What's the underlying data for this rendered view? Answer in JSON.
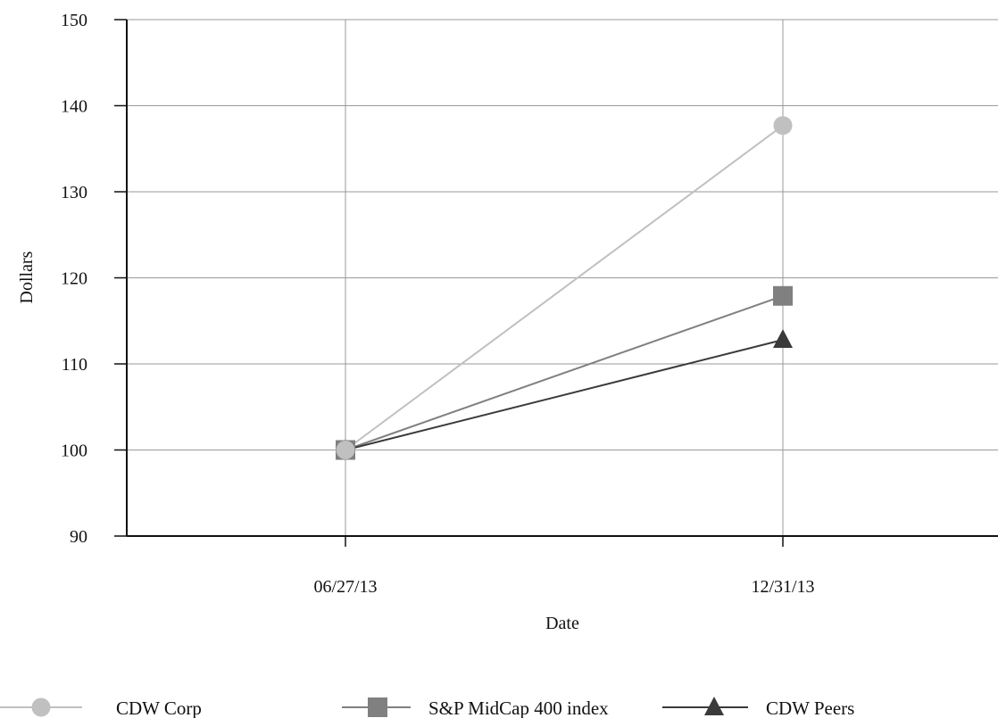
{
  "chart_data": {
    "type": "line",
    "title": "",
    "xlabel": "Date",
    "ylabel": "Dollars",
    "x": [
      "06/27/13",
      "12/31/13"
    ],
    "ylim": [
      90,
      150
    ],
    "yticks": [
      90,
      100,
      110,
      120,
      130,
      140,
      150
    ],
    "grid": true,
    "legend_position": "bottom",
    "series": [
      {
        "name": "CDW Corp",
        "values": [
          100,
          137.7
        ],
        "color": "#c0c0c0",
        "marker": "circle"
      },
      {
        "name": "S&P MidCap 400 index",
        "values": [
          100,
          117.9
        ],
        "color": "#808080",
        "marker": "square"
      },
      {
        "name": "CDW Peers",
        "values": [
          100,
          112.8
        ],
        "color": "#3a3a3a",
        "marker": "triangle"
      }
    ]
  }
}
